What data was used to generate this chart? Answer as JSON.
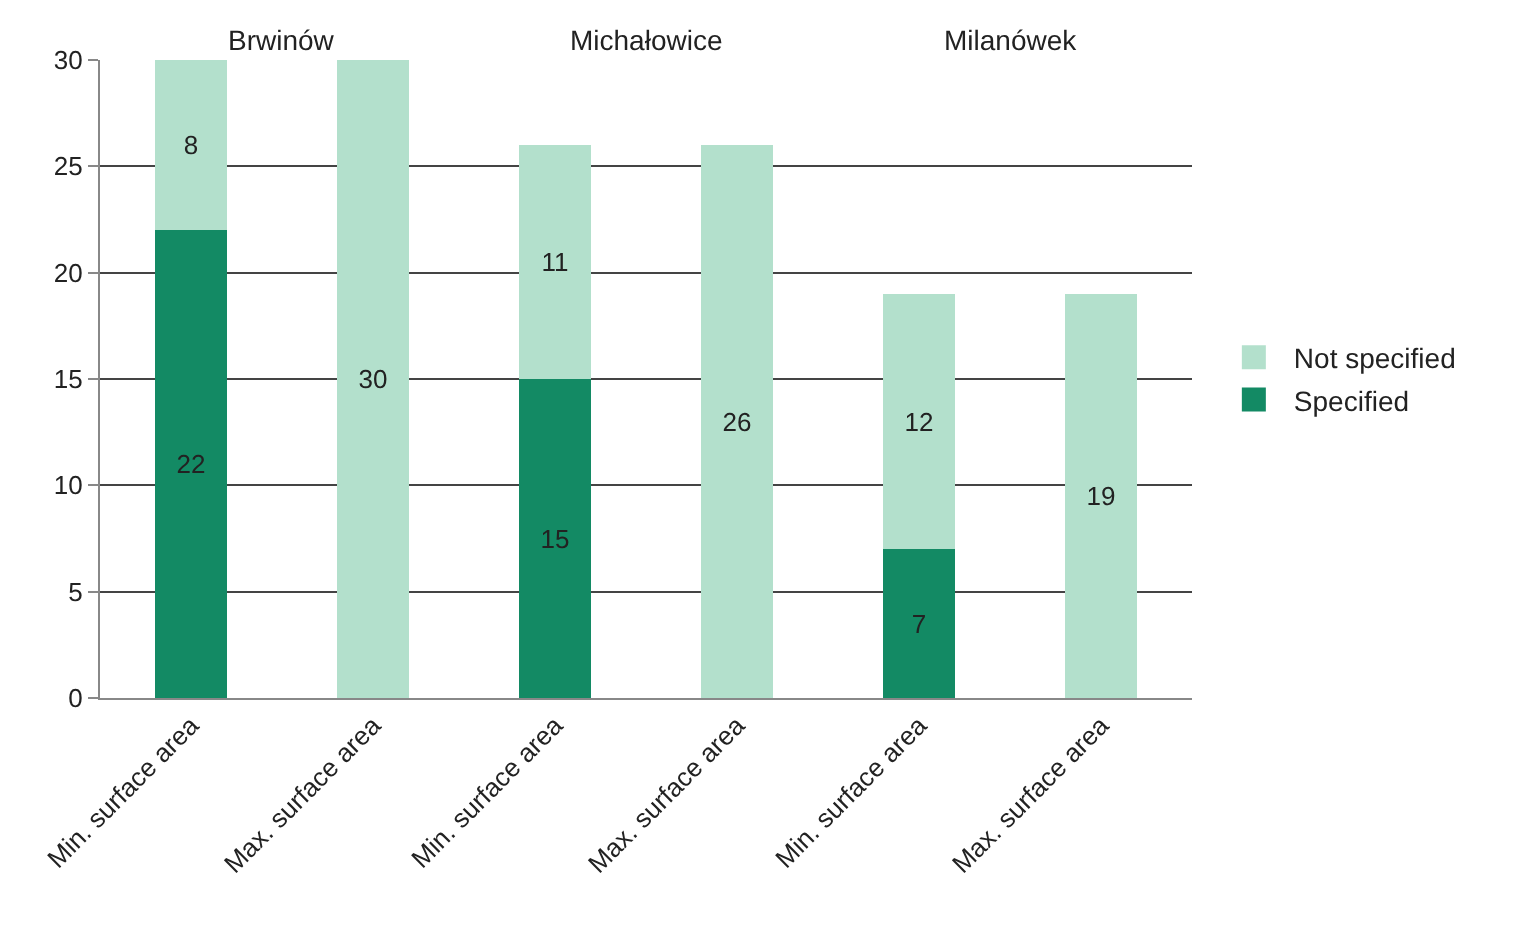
{
  "chart_data": {
    "type": "bar",
    "stacked": true,
    "categories": [
      "Min. surface area",
      "Max. surface area",
      "Min. surface area",
      "Max. surface area",
      "Min. surface area",
      "Max. surface area"
    ],
    "series": [
      {
        "name": "Specified",
        "color": "#138a64",
        "values": [
          22,
          null,
          15,
          null,
          7,
          null
        ]
      },
      {
        "name": "Not specified",
        "color": "#b3e0cc",
        "values": [
          8,
          30,
          11,
          26,
          12,
          19
        ]
      }
    ],
    "annotations": [
      "Brwinów",
      "Michałowice",
      "Milanówek"
    ],
    "ylim": [
      0,
      30
    ],
    "yticks": [
      0,
      5,
      10,
      15,
      20,
      25,
      30
    ],
    "grid": "y",
    "legend": "right",
    "data_labels": true
  }
}
